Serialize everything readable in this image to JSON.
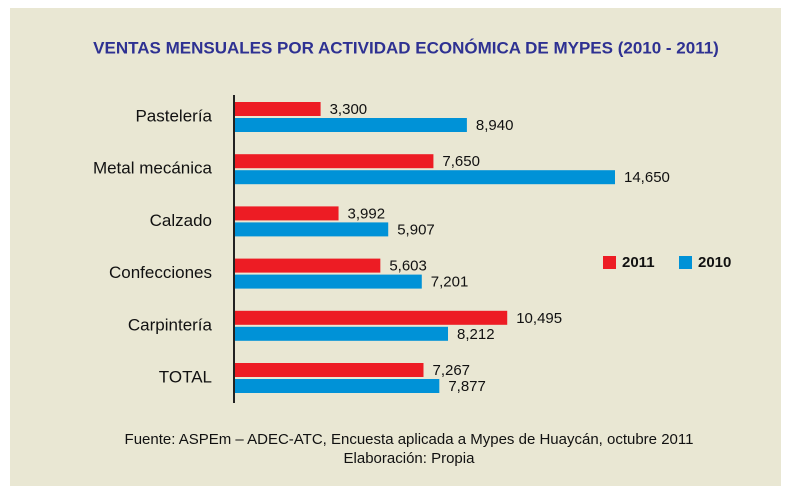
{
  "chart_data": {
    "type": "hbar",
    "title": "VENTAS MENSUALES POR ACTIVIDAD ECONÓMICA DE MYPES (2010 - 2011)",
    "categories": [
      "Pastelería",
      "Metal mecánica",
      "Calzado",
      "Confecciones",
      "Carpintería",
      "TOTAL"
    ],
    "series": [
      {
        "name": "2011",
        "color": "#ed1c24",
        "values": [
          3300,
          7650,
          3992,
          5603,
          10495,
          7267
        ],
        "value_labels": [
          "3,300",
          "7,650",
          "3,992",
          "5,603",
          "10,495",
          "7,267"
        ]
      },
      {
        "name": "2010",
        "color": "#0092d7",
        "values": [
          8940,
          14650,
          5907,
          7201,
          8212,
          7877
        ],
        "value_labels": [
          "8,940",
          "14,650",
          "5,907",
          "7,201",
          "8,212",
          "7,877"
        ]
      }
    ],
    "source": [
      "Fuente: ASPEm – ADEC-ATC, Encuesta aplicada a Mypes de Huaycán, octubre 2011",
      "Elaboración: Propia"
    ]
  }
}
